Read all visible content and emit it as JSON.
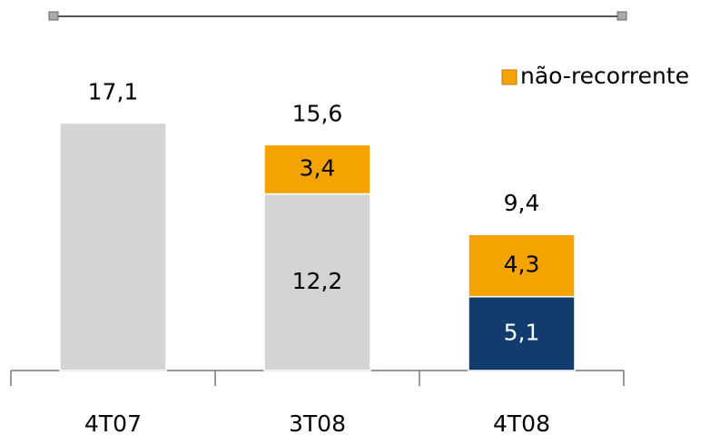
{
  "chart_data": {
    "type": "stacked_bar",
    "categories": [
      "4T07",
      "3T08",
      "4T08"
    ],
    "series": [
      {
        "values": [
          17.1,
          12.2,
          5.1
        ],
        "colors": [
          "#d4d4d4",
          "#d4d4d4",
          "#123c6e"
        ],
        "value_labels": [
          null,
          "12,2",
          "5,1"
        ]
      },
      {
        "name": "não-recorrente",
        "color": "#f5a300",
        "values": [
          null,
          3.4,
          4.3
        ],
        "value_labels": [
          null,
          "3,4",
          "4,3"
        ]
      }
    ],
    "totals": [
      17.1,
      15.6,
      9.4
    ],
    "total_labels": [
      "17,1",
      "15,6",
      "9,4"
    ],
    "ylim": [
      0,
      25.6
    ],
    "legend": "top-right"
  }
}
